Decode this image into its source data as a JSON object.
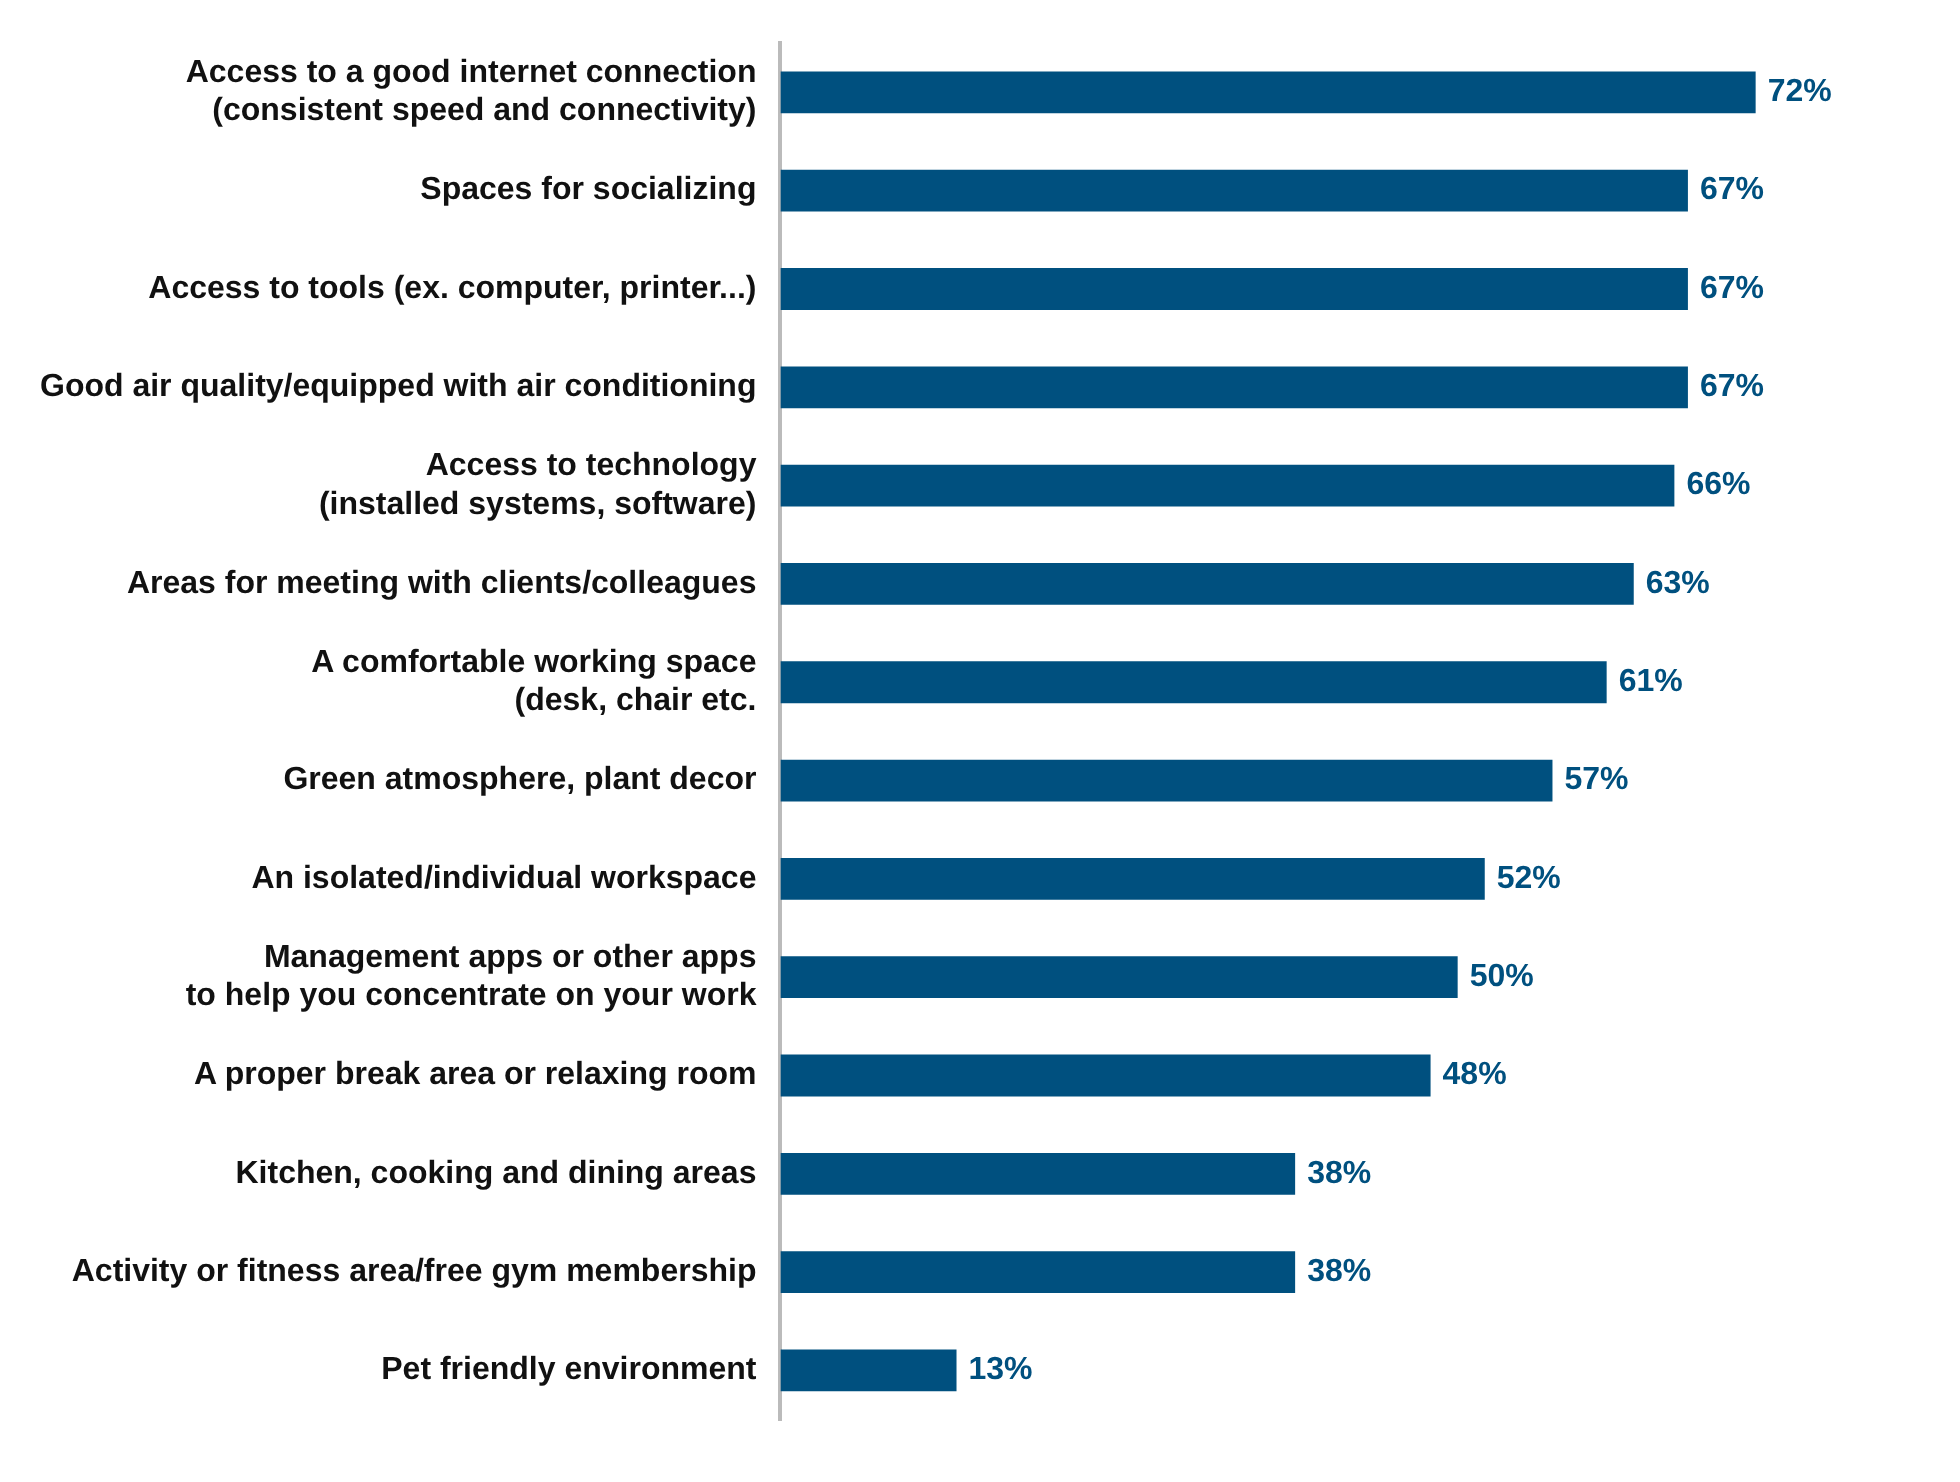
{
  "chart_data": {
    "type": "bar",
    "orientation": "horizontal",
    "tick_labels": "y",
    "legend": false,
    "categories": [
      "Access to a good internet connection\n(consistent speed and connectivity)",
      "Spaces for socializing",
      "Access to tools (ex. computer, printer...)",
      "Good air quality/equipped with air conditioning",
      "Access to technology\n(installed systems, software)",
      "Areas for meeting with clients/colleagues",
      "A comfortable working space\n(desk, chair etc.",
      "Green atmosphere, plant decor",
      "An isolated/individual workspace",
      "Management apps or other apps\nto help you concentrate on your work",
      "A proper break area or relaxing room",
      "Kitchen, cooking and dining areas",
      "Activity or fitness area/free gym membership",
      "Pet friendly environment"
    ],
    "values": [
      72,
      67,
      67,
      67,
      66,
      63,
      61,
      57,
      52,
      50,
      48,
      38,
      38,
      13
    ],
    "value_labels": [
      "72%",
      "67%",
      "67%",
      "67%",
      "66%",
      "63%",
      "61%",
      "57%",
      "52%",
      "50%",
      "48%",
      "38%",
      "38%",
      "13%"
    ],
    "color": "#00507f"
  }
}
